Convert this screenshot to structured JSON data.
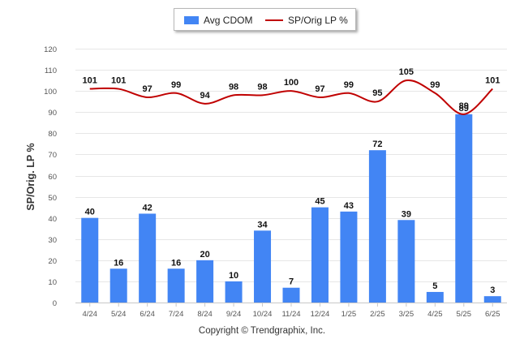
{
  "chart_data": {
    "type": "bar",
    "ylabel": "SP/Orig. LP %",
    "ylim": [
      0,
      120
    ],
    "yticks": [
      0,
      10,
      20,
      30,
      40,
      50,
      60,
      70,
      80,
      90,
      100,
      110,
      120
    ],
    "grid": true,
    "legend_position": "top-center",
    "categories": [
      "4/24",
      "5/24",
      "6/24",
      "7/24",
      "8/24",
      "9/24",
      "10/24",
      "11/24",
      "12/24",
      "1/25",
      "2/25",
      "3/25",
      "4/25",
      "5/25",
      "6/25"
    ],
    "series": [
      {
        "name": "Avg CDOM",
        "type": "bar",
        "color": "#4285f4",
        "values": [
          40,
          16,
          42,
          16,
          20,
          10,
          34,
          7,
          45,
          43,
          72,
          39,
          5,
          89,
          3
        ]
      },
      {
        "name": "SP/Orig LP %",
        "type": "line",
        "color": "#c00000",
        "values": [
          101,
          101,
          97,
          99,
          94,
          98,
          98,
          100,
          97,
          99,
          95,
          105,
          99,
          89,
          101
        ]
      }
    ]
  },
  "footer": {
    "copyright": "Copyright © Trendgraphix, Inc."
  }
}
